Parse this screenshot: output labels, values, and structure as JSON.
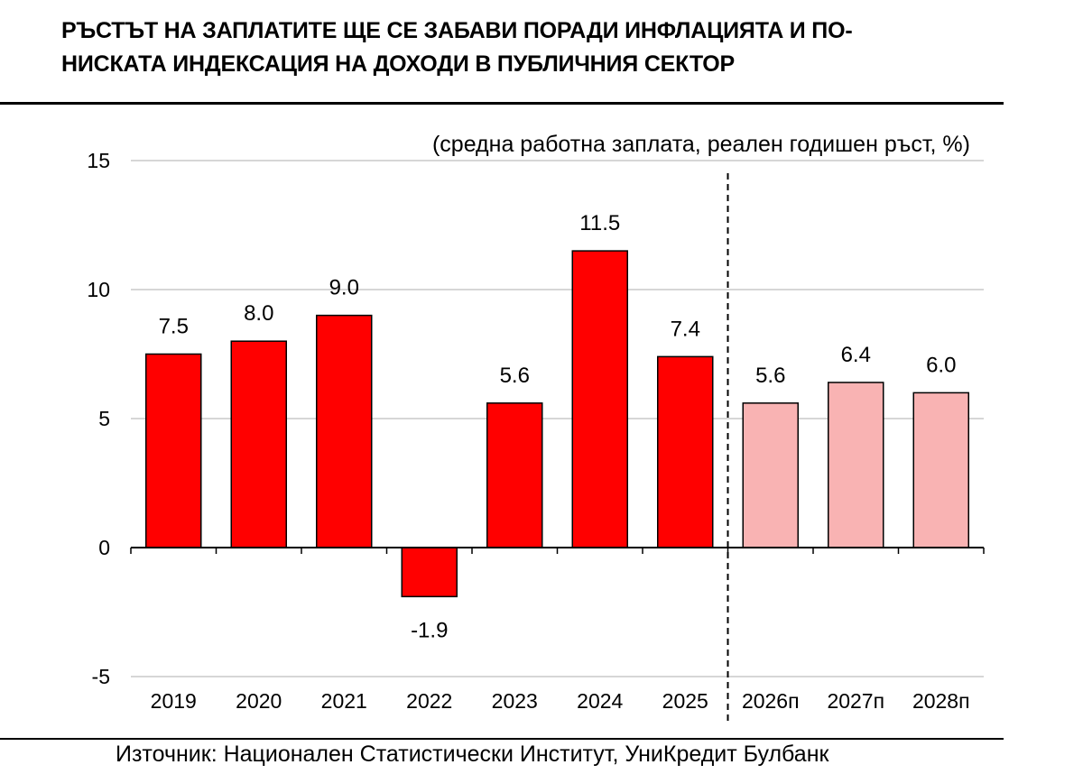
{
  "chart_data": {
    "type": "bar",
    "title": "РЪСТЪТ НА ЗАПЛАТИТЕ ЩЕ СЕ ЗАБАВИ ПОРАДИ ИНФЛАЦИЯТА И ПО-НИСКАТА ИНДЕКСАЦИЯ НА ДОХОДИ В ПУБЛИЧНИЯ СЕКТОР",
    "title_lines": [
      "РЪСТЪТ НА ЗАПЛАТИТЕ ЩЕ СЕ ЗАБАВИ ПОРАДИ ИНФЛАЦИЯТА И ПО-",
      "НИСКАТА ИНДЕКСАЦИЯ НА ДОХОДИ В ПУБЛИЧНИЯ СЕКТОР"
    ],
    "subtitle": "(средна работна заплата, реален годишен ръст, %)",
    "categories": [
      "2019",
      "2020",
      "2021",
      "2022",
      "2023",
      "2024",
      "2025",
      "2026п",
      "2027п",
      "2028п"
    ],
    "values": [
      7.5,
      8.0,
      9.0,
      -1.9,
      5.6,
      11.5,
      7.4,
      5.6,
      6.4,
      6.0
    ],
    "value_labels": [
      "7.5",
      "8.0",
      "9.0",
      "-1.9",
      "5.6",
      "11.5",
      "7.4",
      "5.6",
      "6.4",
      "6.0"
    ],
    "forecast": [
      false,
      false,
      false,
      false,
      false,
      false,
      false,
      true,
      true,
      true
    ],
    "ylim": [
      -5,
      15
    ],
    "yticks": [
      -5,
      0,
      5,
      10,
      15
    ],
    "ytick_labels": [
      "-5",
      "0",
      "5",
      "10",
      "15"
    ],
    "grid": true,
    "forecast_divider": "dashed line between 2025 and 2026п",
    "colors": {
      "actual": "#ff0000",
      "forecast": "#f9b3b3",
      "bar_outline": "#000000",
      "grid": "#c8c8c8",
      "axis": "#000000"
    },
    "source": "Източник: Национален Статистически Институт, УниКредит Булбанк"
  }
}
